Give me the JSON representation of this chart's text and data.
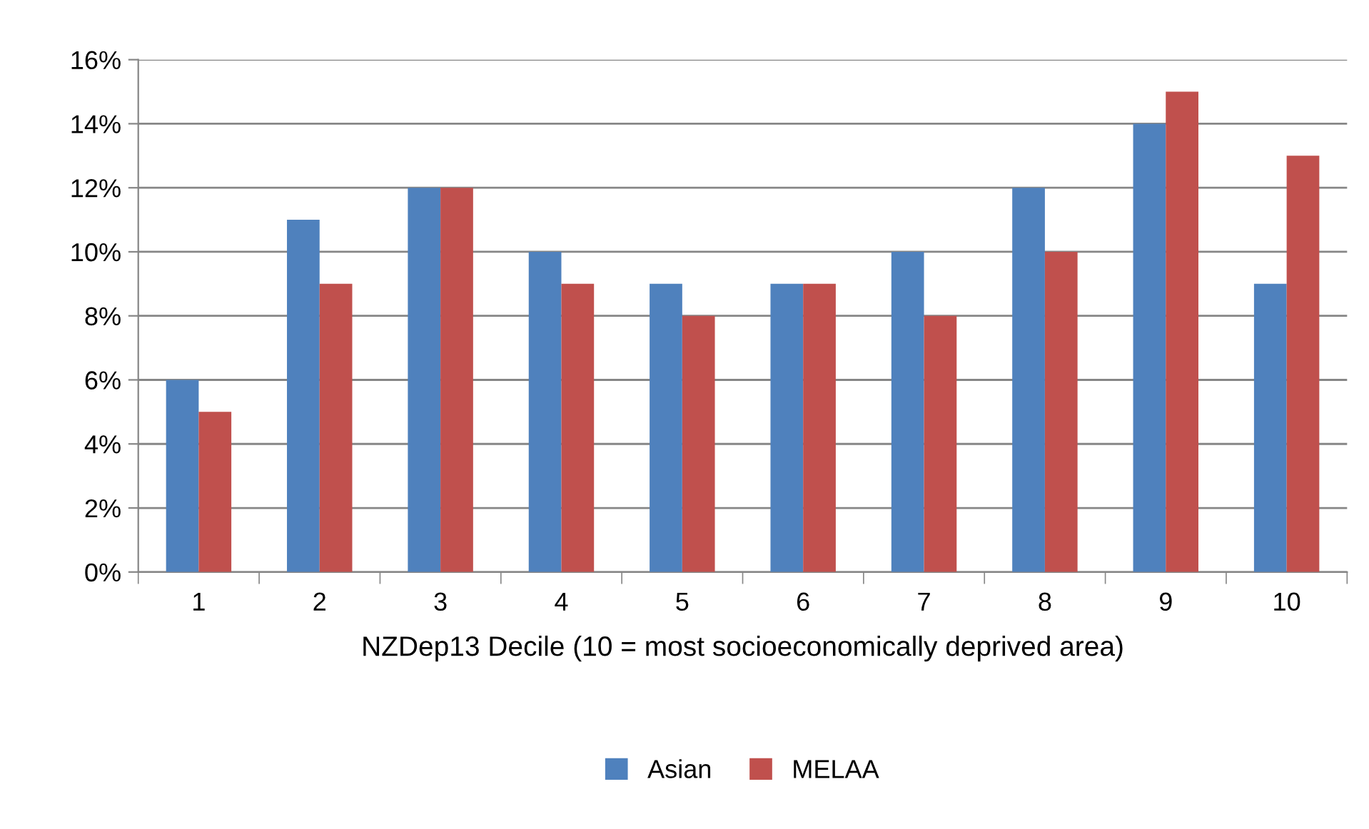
{
  "chart_data": {
    "type": "bar",
    "xlabel": "NZDep13 Decile (10 = most socioeconomically deprived area)",
    "categories": [
      "1",
      "2",
      "3",
      "4",
      "5",
      "6",
      "7",
      "8",
      "9",
      "10"
    ],
    "series": [
      {
        "name": "Asian",
        "color": "#4f81bd",
        "values": [
          6,
          11,
          12,
          10,
          9,
          9,
          10,
          12,
          14,
          9
        ]
      },
      {
        "name": "MELAA",
        "color": "#c0504d",
        "values": [
          5,
          9,
          12,
          9,
          8,
          9,
          8,
          10,
          15,
          13
        ]
      }
    ],
    "ylim": [
      0,
      16
    ],
    "yticks": [
      {
        "value": 0,
        "label": "0%"
      },
      {
        "value": 2,
        "label": "2%"
      },
      {
        "value": 4,
        "label": "4%"
      },
      {
        "value": 6,
        "label": "6%"
      },
      {
        "value": 8,
        "label": "8%"
      },
      {
        "value": 10,
        "label": "10%"
      },
      {
        "value": 12,
        "label": "12%"
      },
      {
        "value": 14,
        "label": "14%"
      },
      {
        "value": 16,
        "label": "16%"
      }
    ],
    "grid": "y",
    "legend": "bottom"
  }
}
